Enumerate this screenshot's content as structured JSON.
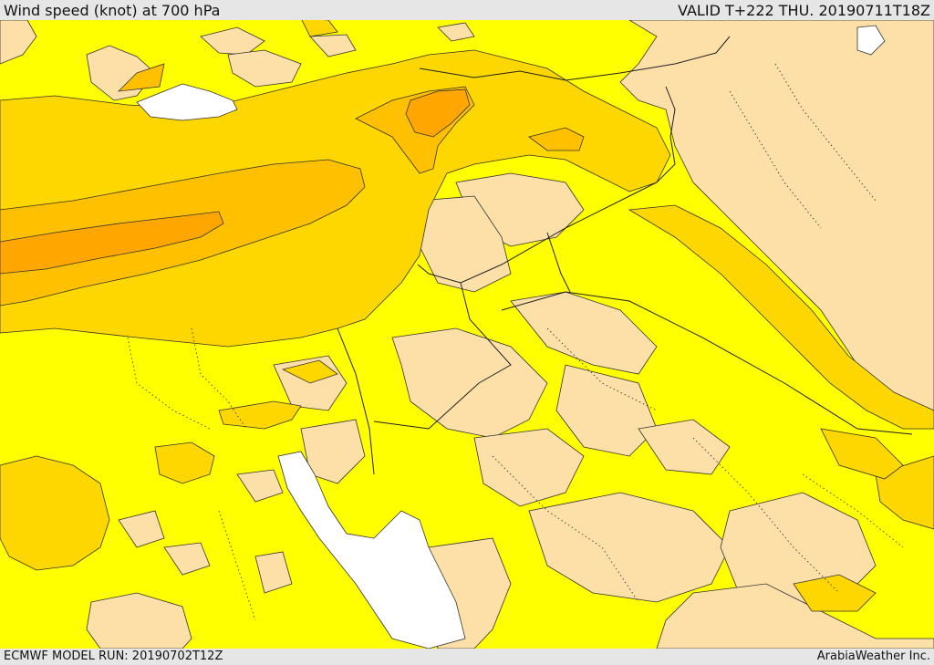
{
  "header": {
    "title": "Wind speed (knot) at 700 hPa",
    "valid": "VALID T+222 THU. 20190711T18Z"
  },
  "footer": {
    "model_run": "ECMWF MODEL RUN: 20190702T12Z",
    "credit": "ArabiaWeather Inc."
  },
  "colors": {
    "background_level": "#ffff00",
    "light_level": "#fde0a8",
    "mid_level": "#ffd700",
    "high_level": "#ffc000",
    "highest_level": "#ffa600",
    "calm_level": "#ffffff",
    "contour": "#333333"
  }
}
